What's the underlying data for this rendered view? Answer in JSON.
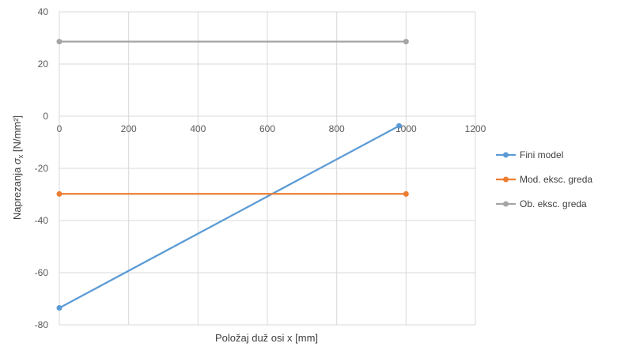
{
  "chart_data": {
    "type": "scatter",
    "title": "",
    "xlabel": "Položaj duž osi x [mm]",
    "ylabel_prefix": "Naprezanja ",
    "ylabel_symbol": "σ",
    "ylabel_subscript": "x",
    "ylabel_unit": " [N/mm²]",
    "xlim": [
      0,
      1200
    ],
    "ylim": [
      -80,
      40
    ],
    "xticks": [
      "0",
      "200",
      "400",
      "600",
      "800",
      "1000",
      "1200"
    ],
    "yticks": [
      "40",
      "20",
      "0",
      "-20",
      "-40",
      "-60",
      "-80"
    ],
    "grid": true,
    "legend_position": "right",
    "series": [
      {
        "name": "Fini model",
        "color": "#5b9bd5",
        "x": [
          0,
          980
        ],
        "y": [
          -73.5,
          -3.7
        ]
      },
      {
        "name": "Mod. eksc. greda",
        "color": "#ed7d31",
        "x": [
          0,
          1000
        ],
        "y": [
          -29.8,
          -29.8
        ]
      },
      {
        "name": "Ob. eksc. greda",
        "color": "#a5a5a5",
        "x": [
          0,
          1000
        ],
        "y": [
          28.6,
          28.6
        ]
      }
    ]
  }
}
